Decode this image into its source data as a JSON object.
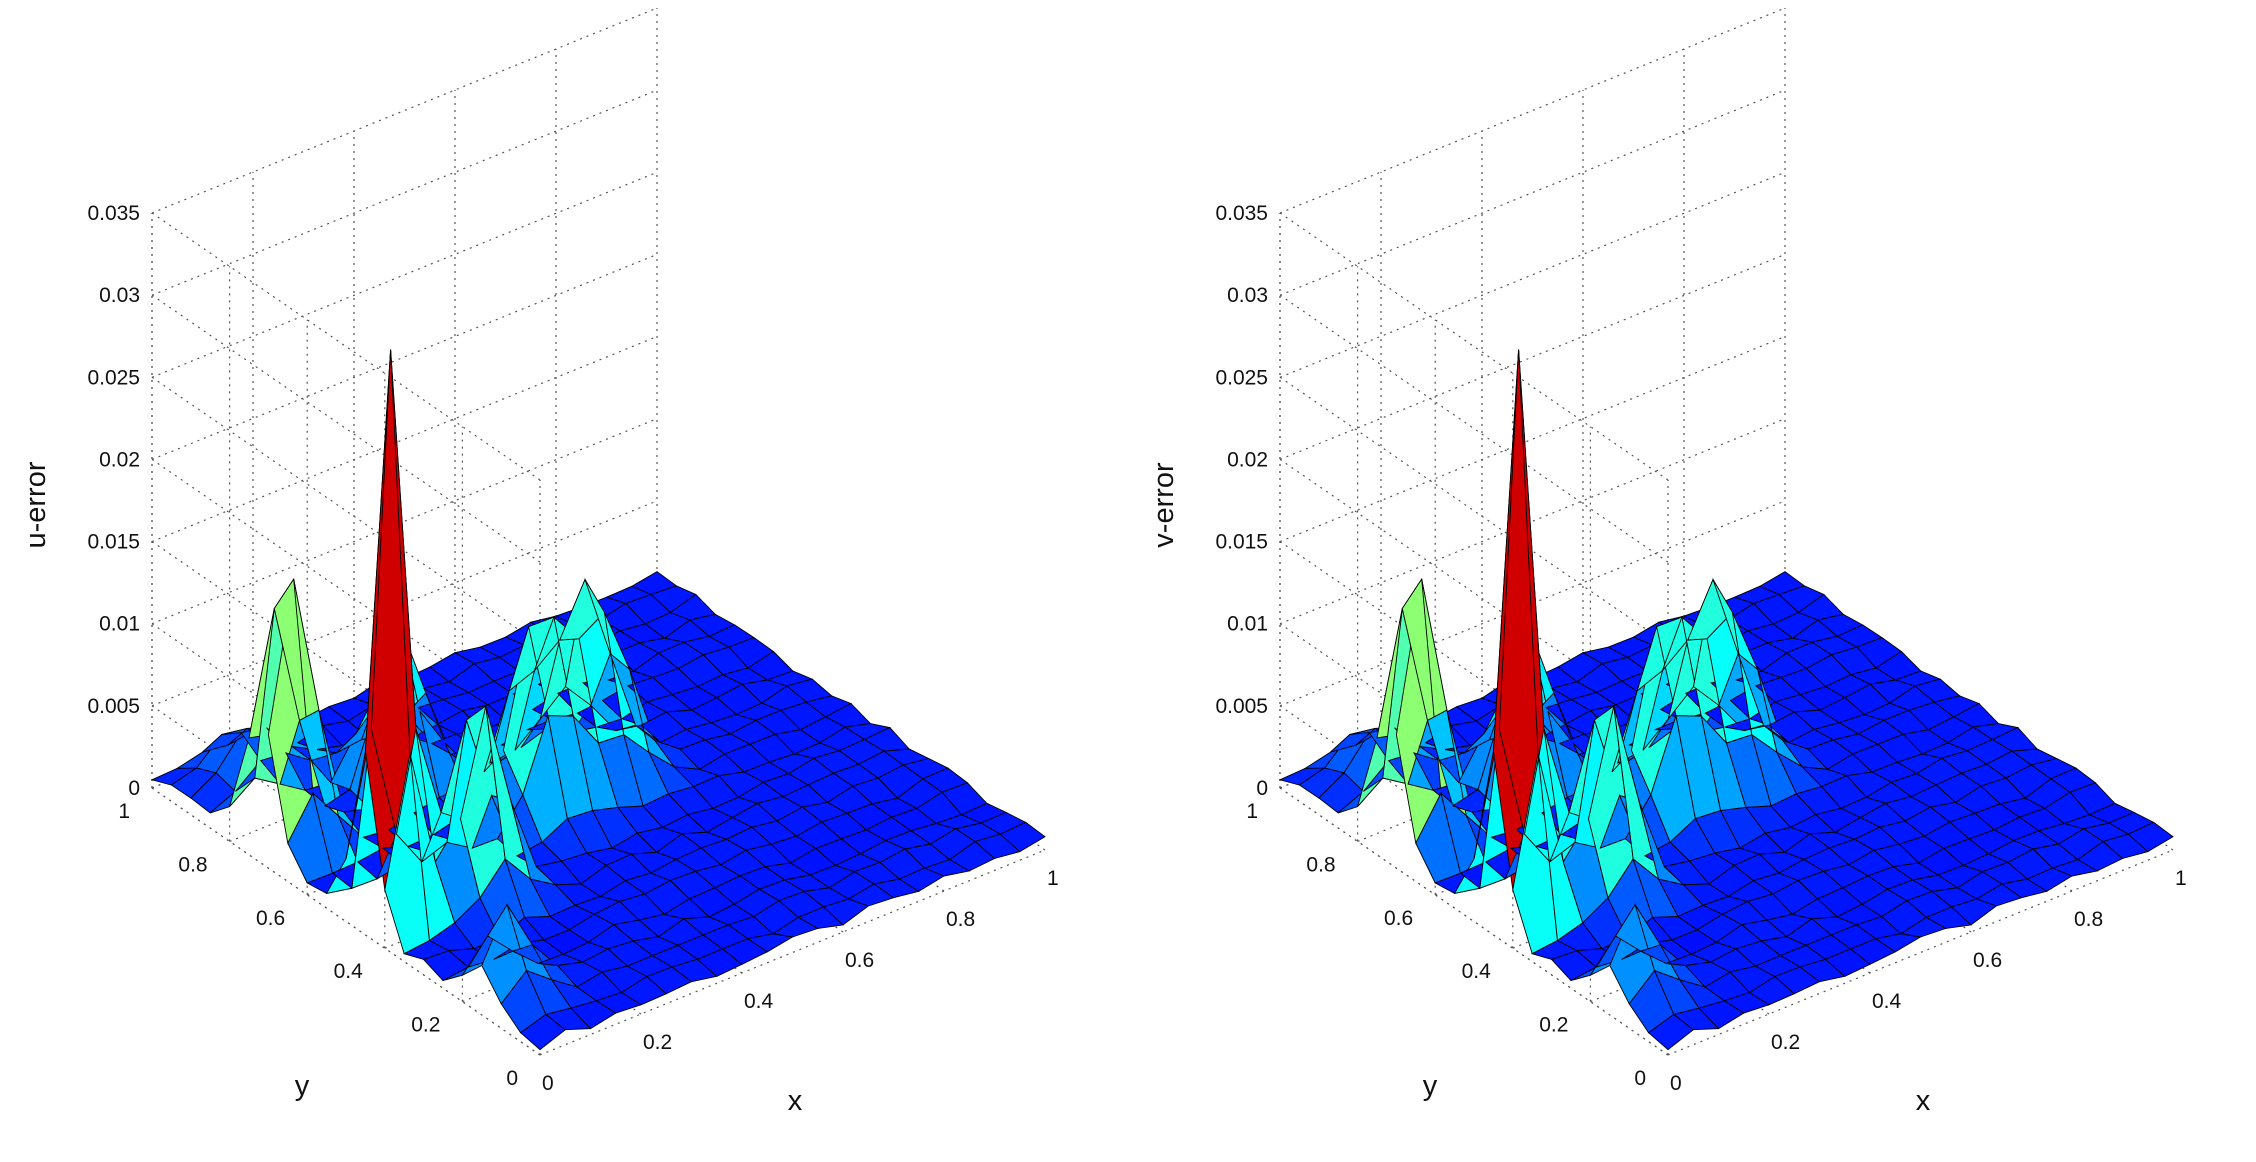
{
  "chart_data": [
    {
      "type": "surface",
      "title": "",
      "xlabel": "x",
      "ylabel": "y",
      "zlabel": "u-error",
      "xlim": [
        0,
        1
      ],
      "ylim": [
        0,
        1
      ],
      "zlim": [
        0,
        0.035
      ],
      "x_ticks": [
        "0",
        "0.2",
        "0.4",
        "0.6",
        "0.8",
        "1"
      ],
      "y_ticks": [
        "0",
        "0.2",
        "0.4",
        "0.6",
        "0.8",
        "1"
      ],
      "z_ticks": [
        "0",
        "0.005",
        "0.01",
        "0.015",
        "0.02",
        "0.025",
        "0.03",
        "0.035"
      ],
      "grid": true,
      "colormap": "jet",
      "grid_size": 21,
      "peaks": [
        {
          "x": 0.05,
          "y": 0.45,
          "z": 0.0348,
          "width": 0.032
        },
        {
          "x": 0.05,
          "y": 0.72,
          "z": 0.0185,
          "width": 0.04
        },
        {
          "x": 0.2,
          "y": 0.42,
          "z": 0.0135,
          "width": 0.04
        },
        {
          "x": 0.42,
          "y": 0.55,
          "z": 0.012,
          "width": 0.05
        },
        {
          "x": 0.55,
          "y": 0.58,
          "z": 0.0122,
          "width": 0.05
        },
        {
          "x": 0.3,
          "y": 0.75,
          "z": 0.0095,
          "width": 0.045
        },
        {
          "x": 0.05,
          "y": 0.15,
          "z": 0.0055,
          "width": 0.04
        },
        {
          "x": 0.12,
          "y": 0.9,
          "z": 0.0035,
          "width": 0.05
        }
      ],
      "baseline": 0.0008
    },
    {
      "type": "surface",
      "title": "",
      "xlabel": "x",
      "ylabel": "y",
      "zlabel": "v-error",
      "xlim": [
        0,
        1
      ],
      "ylim": [
        0,
        1
      ],
      "zlim": [
        0,
        0.035
      ],
      "x_ticks": [
        "0",
        "0.2",
        "0.4",
        "0.6",
        "0.8",
        "1"
      ],
      "y_ticks": [
        "0",
        "0.2",
        "0.4",
        "0.6",
        "0.8",
        "1"
      ],
      "z_ticks": [
        "0",
        "0.005",
        "0.01",
        "0.015",
        "0.02",
        "0.025",
        "0.03",
        "0.035"
      ],
      "grid": true,
      "colormap": "jet",
      "grid_size": 21,
      "peaks": [
        {
          "x": 0.05,
          "y": 0.45,
          "z": 0.0348,
          "width": 0.032
        },
        {
          "x": 0.05,
          "y": 0.72,
          "z": 0.0185,
          "width": 0.04
        },
        {
          "x": 0.2,
          "y": 0.42,
          "z": 0.0135,
          "width": 0.04
        },
        {
          "x": 0.42,
          "y": 0.55,
          "z": 0.012,
          "width": 0.05
        },
        {
          "x": 0.55,
          "y": 0.58,
          "z": 0.0122,
          "width": 0.05
        },
        {
          "x": 0.3,
          "y": 0.75,
          "z": 0.0095,
          "width": 0.045
        },
        {
          "x": 0.05,
          "y": 0.15,
          "z": 0.0055,
          "width": 0.04
        },
        {
          "x": 0.12,
          "y": 0.9,
          "z": 0.0035,
          "width": 0.05
        }
      ],
      "baseline": 0.0008
    }
  ]
}
